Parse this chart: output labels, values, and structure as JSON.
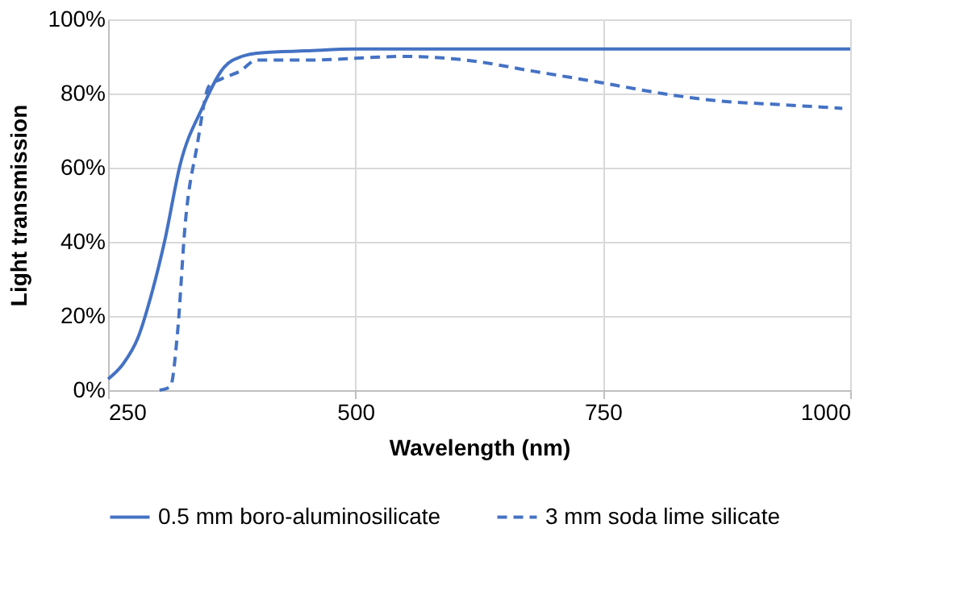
{
  "chart_data": {
    "type": "line",
    "xlabel": "Wavelength (nm)",
    "ylabel": "Light transmission",
    "xlim": [
      250,
      1000
    ],
    "xticks": [
      250,
      500,
      750,
      1000
    ],
    "ylim": [
      0,
      100
    ],
    "yticks": [
      {
        "value": 0,
        "label": "0%"
      },
      {
        "value": 20,
        "label": "20%"
      },
      {
        "value": 40,
        "label": "40%"
      },
      {
        "value": 60,
        "label": "60%"
      },
      {
        "value": 80,
        "label": "80%"
      },
      {
        "value": 100,
        "label": "100%"
      }
    ],
    "grid": true,
    "legend": "bottom",
    "marker": "none",
    "series": [
      {
        "name": "0.5 mm boro-aluminosilicate",
        "color": "#4472c4",
        "line_style": "solid",
        "x": [
          250,
          265,
          280,
          295,
          307,
          323,
          345,
          367,
          385,
          405,
          450,
          500,
          600,
          750,
          900,
          1000
        ],
        "values": [
          3,
          7,
          14,
          27,
          40,
          61,
          76,
          87,
          90,
          91,
          91.5,
          92,
          92,
          92,
          92,
          92
        ]
      },
      {
        "name": "3 mm soda lime silicate",
        "color": "#4472c4",
        "line_style": "dashed",
        "x": [
          302,
          313,
          320,
          328,
          340,
          352,
          365,
          383,
          400,
          450,
          550,
          612,
          680,
          747,
          810,
          867,
          930,
          992
        ],
        "values": [
          0,
          1,
          15,
          45,
          66,
          82,
          84,
          86,
          89,
          89,
          90,
          89,
          86,
          83,
          80,
          78,
          77,
          76
        ]
      }
    ]
  }
}
